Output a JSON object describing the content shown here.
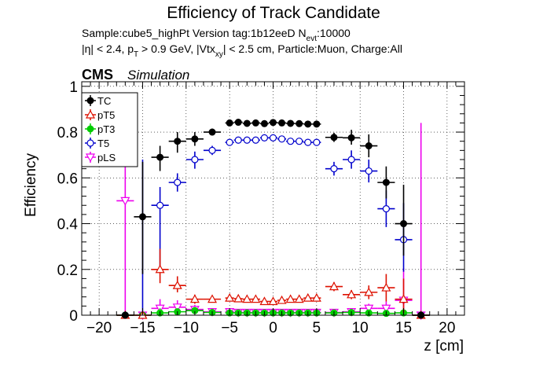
{
  "chart_data": {
    "type": "scatter",
    "title": "Efficiency of Track Candidate",
    "subtitle_line1": {
      "pre": "Sample:cube5_highPt   Version tag:1b12eeD  N",
      "sub": "evt",
      "post": ":10000"
    },
    "subtitle_line2": {
      "p1": "|η| < 2.4, p",
      "s1": "T",
      "p2": " > 0.9 GeV, |Vtx",
      "s2": "xy",
      "p3": "| < 2.5 cm, Particle:Muon, Charge:All"
    },
    "label_cms": "CMS",
    "label_simulation": "Simulation",
    "xlabel": "z [cm]",
    "ylabel": "Efficiency",
    "xlim": [
      -22,
      22
    ],
    "ylim": [
      0,
      1.02
    ],
    "xticks": [
      -20,
      -15,
      -10,
      -5,
      0,
      5,
      10,
      15,
      20
    ],
    "xtick_labels": [
      "−20",
      "−15",
      "−10",
      "−5",
      "0",
      "5",
      "10",
      "15",
      "20"
    ],
    "yticks": [
      0,
      0.2,
      0.4,
      0.6,
      0.8,
      1
    ],
    "ytick_labels": [
      "0",
      "0.2",
      "0.4",
      "0.6",
      "0.8",
      "1"
    ],
    "grid": true,
    "legend_position": "top-left",
    "x": [
      -17,
      -15,
      -13,
      -11,
      -9,
      -7,
      -5,
      -4,
      -3,
      -2,
      -1,
      0,
      1,
      2,
      3,
      4,
      5,
      7,
      9,
      11,
      13,
      15,
      17
    ],
    "x_half_widths": [
      1,
      1,
      1,
      1,
      1,
      1,
      0.5,
      0.5,
      0.5,
      0.5,
      0.5,
      0.5,
      0.5,
      0.5,
      0.5,
      0.5,
      0.5,
      1,
      1,
      1,
      1,
      1,
      1
    ],
    "series": [
      {
        "name": "TC",
        "color": "#000000",
        "marker": "filled-circle",
        "values": [
          0.0,
          0.43,
          0.69,
          0.76,
          0.77,
          0.8,
          0.84,
          0.843,
          0.838,
          0.84,
          0.837,
          0.842,
          0.84,
          0.838,
          0.837,
          0.835,
          0.835,
          0.777,
          0.775,
          0.74,
          0.58,
          0.4,
          0.0
        ],
        "err_low": [
          0.0,
          0.25,
          0.06,
          0.05,
          0.03,
          0.015,
          0.01,
          0.01,
          0.01,
          0.01,
          0.01,
          0.01,
          0.01,
          0.01,
          0.01,
          0.01,
          0.01,
          0.02,
          0.03,
          0.05,
          0.07,
          0.14,
          0.0
        ],
        "err_high": [
          0.0,
          0.24,
          0.05,
          0.04,
          0.03,
          0.015,
          0.01,
          0.01,
          0.01,
          0.01,
          0.01,
          0.01,
          0.01,
          0.01,
          0.01,
          0.01,
          0.01,
          0.02,
          0.035,
          0.05,
          0.07,
          0.17,
          0.0
        ]
      },
      {
        "name": "pT5",
        "color": "#dd1100",
        "marker": "open-triangle",
        "values": [
          0.0,
          0.0,
          0.2,
          0.13,
          0.07,
          0.07,
          0.075,
          0.072,
          0.07,
          0.07,
          0.06,
          0.06,
          0.065,
          0.07,
          0.07,
          0.075,
          0.075,
          0.125,
          0.09,
          0.1,
          0.12,
          0.07,
          0.0
        ],
        "err_low": [
          0.0,
          0.0,
          0.06,
          0.03,
          0.02,
          0.01,
          0.01,
          0.01,
          0.01,
          0.01,
          0.01,
          0.01,
          0.01,
          0.01,
          0.01,
          0.01,
          0.01,
          0.02,
          0.02,
          0.03,
          0.06,
          0.06,
          0.0
        ],
        "err_high": [
          0.0,
          0.0,
          0.09,
          0.04,
          0.02,
          0.01,
          0.01,
          0.01,
          0.01,
          0.01,
          0.01,
          0.01,
          0.01,
          0.01,
          0.01,
          0.01,
          0.01,
          0.02,
          0.02,
          0.03,
          0.06,
          0.09,
          0.0
        ]
      },
      {
        "name": "pT3",
        "color": "#00cc00",
        "marker": "filled-circle",
        "values": [
          0.0,
          0.0,
          0.01,
          0.015,
          0.02,
          0.012,
          0.01,
          0.01,
          0.01,
          0.01,
          0.01,
          0.01,
          0.01,
          0.01,
          0.01,
          0.01,
          0.01,
          0.01,
          0.012,
          0.01,
          0.008,
          0.01,
          0.0
        ],
        "err_low": [
          0.0,
          0.0,
          0.01,
          0.01,
          0.01,
          0.005,
          0.005,
          0.005,
          0.005,
          0.005,
          0.005,
          0.005,
          0.005,
          0.005,
          0.005,
          0.005,
          0.005,
          0.005,
          0.008,
          0.01,
          0.008,
          0.01,
          0.0
        ],
        "err_high": [
          0.0,
          0.0,
          0.02,
          0.015,
          0.01,
          0.005,
          0.005,
          0.005,
          0.005,
          0.005,
          0.005,
          0.005,
          0.005,
          0.005,
          0.005,
          0.005,
          0.005,
          0.005,
          0.008,
          0.01,
          0.01,
          0.02,
          0.0
        ]
      },
      {
        "name": "T5",
        "color": "#0000cc",
        "marker": "open-circle",
        "values": [
          0.0,
          0.0,
          0.48,
          0.58,
          0.68,
          0.72,
          0.755,
          0.765,
          0.765,
          0.765,
          0.775,
          0.775,
          0.77,
          0.76,
          0.76,
          0.755,
          0.755,
          0.64,
          0.68,
          0.63,
          0.465,
          0.33,
          0.0
        ],
        "err_low": [
          0.0,
          0.0,
          0.28,
          0.04,
          0.04,
          0.02,
          0.012,
          0.012,
          0.012,
          0.012,
          0.012,
          0.012,
          0.012,
          0.012,
          0.012,
          0.012,
          0.012,
          0.03,
          0.04,
          0.05,
          0.08,
          0.14,
          0.0
        ],
        "err_high": [
          0.0,
          0.68,
          0.08,
          0.04,
          0.035,
          0.02,
          0.012,
          0.012,
          0.012,
          0.012,
          0.012,
          0.012,
          0.012,
          0.012,
          0.012,
          0.012,
          0.012,
          0.03,
          0.04,
          0.05,
          0.08,
          0.16,
          0.0
        ]
      },
      {
        "name": "pLS",
        "color": "#ee00ee",
        "marker": "open-triangle-down",
        "values": [
          0.5,
          0.0,
          0.03,
          0.035,
          0.025,
          0.015,
          0.015,
          0.012,
          0.012,
          0.012,
          0.012,
          0.012,
          0.012,
          0.012,
          0.012,
          0.012,
          0.012,
          0.012,
          0.015,
          0.03,
          0.03,
          0.065,
          0.0
        ],
        "err_low": [
          0.5,
          0.0,
          0.02,
          0.02,
          0.015,
          0.01,
          0.008,
          0.008,
          0.008,
          0.008,
          0.008,
          0.008,
          0.008,
          0.008,
          0.008,
          0.008,
          0.008,
          0.008,
          0.01,
          0.02,
          0.02,
          0.065,
          0.0
        ],
        "err_high": [
          0.17,
          0.0,
          0.04,
          0.03,
          0.02,
          0.01,
          0.008,
          0.008,
          0.008,
          0.008,
          0.008,
          0.008,
          0.008,
          0.008,
          0.008,
          0.008,
          0.008,
          0.008,
          0.01,
          0.02,
          0.03,
          0.14,
          0.84
        ]
      }
    ]
  }
}
